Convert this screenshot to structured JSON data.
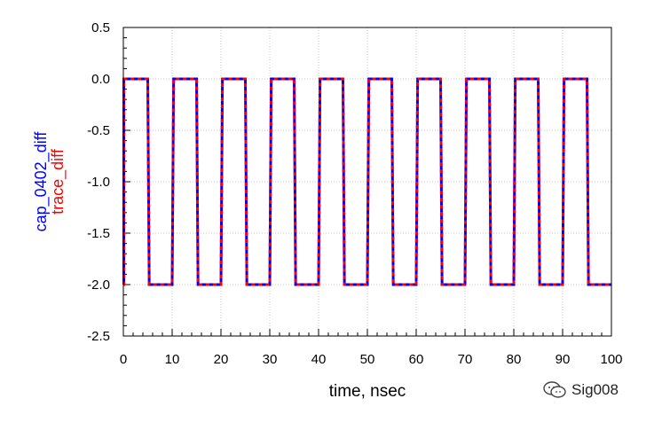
{
  "chart_data": {
    "type": "line",
    "xlabel": "time, nsec",
    "ylabel_series": [
      "cap_0402_diff",
      "trace_diff"
    ],
    "xlim": [
      0,
      100
    ],
    "ylim": [
      -2.5,
      0.5
    ],
    "xticks": [
      0,
      10,
      20,
      30,
      40,
      50,
      60,
      70,
      80,
      90,
      100
    ],
    "yticks": [
      0.5,
      0.0,
      -0.5,
      -1.0,
      -1.5,
      -2.0,
      -2.5
    ],
    "ytick_labels": [
      "0.5",
      "0.0",
      "-0.5",
      "-1.0",
      "-1.5",
      "-2.0",
      "-2.5"
    ],
    "grid": true,
    "series": [
      {
        "name": "cap_0402_diff",
        "color": "#0000ff",
        "style": "solid",
        "x": [
          0,
          0.1,
          0.1,
          5,
          5.3,
          10,
          10.3,
          15,
          15.3,
          20,
          20.3,
          25,
          25.3,
          30,
          30.3,
          35,
          35.3,
          40,
          40.3,
          45,
          45.3,
          50,
          50.3,
          55,
          55.3,
          60,
          60.3,
          65,
          65.3,
          70,
          70.3,
          75,
          75.3,
          80,
          80.3,
          85,
          85.3,
          90,
          90.3,
          95,
          95.3,
          100
        ],
        "y": [
          -2.0,
          -2.0,
          0.0,
          0.0,
          -2.0,
          -2.0,
          0.0,
          0.0,
          -2.0,
          -2.0,
          0.0,
          0.0,
          -2.0,
          -2.0,
          0.0,
          0.0,
          -2.0,
          -2.0,
          0.0,
          0.0,
          -2.0,
          -2.0,
          0.0,
          0.0,
          -2.0,
          -2.0,
          0.0,
          0.0,
          -2.0,
          -2.0,
          0.0,
          0.0,
          -2.0,
          -2.0,
          0.0,
          0.0,
          -2.0,
          -2.0,
          0.0,
          0.0,
          -2.0,
          -2.0
        ]
      },
      {
        "name": "trace_diff",
        "color": "#ff0000",
        "style": "dashed",
        "x": [
          0,
          0.1,
          0.1,
          5,
          5.3,
          10,
          10.3,
          15,
          15.3,
          20,
          20.3,
          25,
          25.3,
          30,
          30.3,
          35,
          35.3,
          40,
          40.3,
          45,
          45.3,
          50,
          50.3,
          55,
          55.3,
          60,
          60.3,
          65,
          65.3,
          70,
          70.3,
          75,
          75.3,
          80,
          80.3,
          85,
          85.3,
          90,
          90.3,
          95,
          95.3,
          100
        ],
        "y": [
          -2.0,
          -2.0,
          0.0,
          0.0,
          -2.0,
          -2.0,
          0.0,
          0.0,
          -2.0,
          -2.0,
          0.0,
          0.0,
          -2.0,
          -2.0,
          0.0,
          0.0,
          -2.0,
          -2.0,
          0.0,
          0.0,
          -2.0,
          -2.0,
          0.0,
          0.0,
          -2.0,
          -2.0,
          0.0,
          0.0,
          -2.0,
          -2.0,
          0.0,
          0.0,
          -2.0,
          -2.0,
          0.0,
          0.0,
          -2.0,
          -2.0,
          0.0,
          0.0,
          -2.0,
          -2.0
        ]
      }
    ]
  },
  "watermark": {
    "text": "Sig008",
    "icon": "wechat-icon"
  }
}
